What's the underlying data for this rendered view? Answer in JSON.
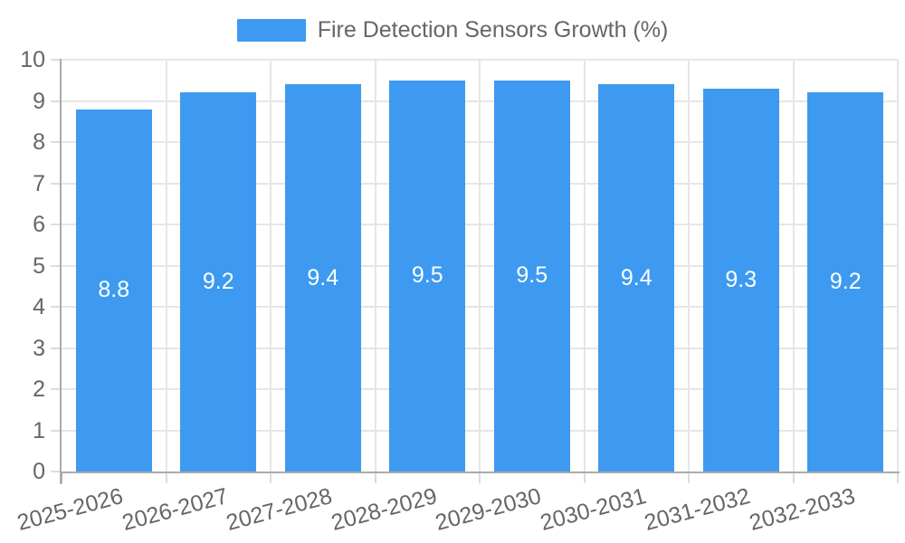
{
  "legend": {
    "label": "Fire Detection Sensors Growth (%)"
  },
  "chart_data": {
    "type": "bar",
    "title": "",
    "xlabel": "",
    "ylabel": "",
    "categories": [
      "2025-2026",
      "2026-2027",
      "2027-2028",
      "2028-2029",
      "2029-2030",
      "2030-2031",
      "2031-2032",
      "2032-2033"
    ],
    "values": [
      8.8,
      9.2,
      9.4,
      9.5,
      9.5,
      9.4,
      9.3,
      9.2
    ],
    "series_name": "Fire Detection Sensors Growth (%)",
    "ylim": [
      0,
      10
    ],
    "yticks": [
      0,
      1,
      2,
      3,
      4,
      5,
      6,
      7,
      8,
      9,
      10
    ],
    "grid": true,
    "legend_position": "top",
    "x_label_rotation_deg": -15,
    "bar_color": "#3d9af0",
    "value_label_color": "#ffffff"
  },
  "colors": {
    "background": "#ffffff",
    "axis": "#ababab",
    "grid": "#e6e6e6",
    "tick_mark": "#dcdcdc",
    "tick_text": "#666666",
    "accent_blue": "#3d9af0"
  }
}
